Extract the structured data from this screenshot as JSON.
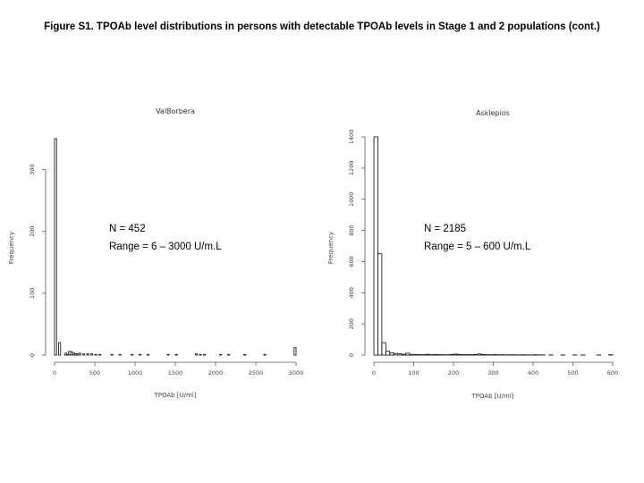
{
  "figure_title": "Figure S1. TPOAb level distributions in persons with detectable TPOAb levels in Stage 1 and 2 populations (cont.)",
  "chart_data": [
    {
      "type": "bar",
      "title": "ValBorbera",
      "xlabel": "TPOAb [U/ml]",
      "ylabel": "Frequency",
      "xticks": [
        0,
        500,
        1000,
        1500,
        2000,
        2500,
        3000
      ],
      "yticks": [
        0,
        100,
        200,
        300
      ],
      "xlim": [
        0,
        3000
      ],
      "ylim": [
        0,
        350
      ],
      "binwidth": 25,
      "bins": [
        {
          "x": 0,
          "y": 350
        },
        {
          "x": 25,
          "y": 0
        },
        {
          "x": 50,
          "y": 20
        },
        {
          "x": 75,
          "y": 0
        },
        {
          "x": 100,
          "y": 0
        },
        {
          "x": 125,
          "y": 3
        },
        {
          "x": 150,
          "y": 1
        },
        {
          "x": 175,
          "y": 6
        },
        {
          "x": 200,
          "y": 5
        },
        {
          "x": 225,
          "y": 3
        },
        {
          "x": 250,
          "y": 2
        },
        {
          "x": 275,
          "y": 2
        },
        {
          "x": 300,
          "y": 3
        },
        {
          "x": 350,
          "y": 2
        },
        {
          "x": 400,
          "y": 2
        },
        {
          "x": 450,
          "y": 2
        },
        {
          "x": 500,
          "y": 1
        },
        {
          "x": 550,
          "y": 1
        },
        {
          "x": 700,
          "y": 1
        },
        {
          "x": 800,
          "y": 1
        },
        {
          "x": 950,
          "y": 1
        },
        {
          "x": 1050,
          "y": 1
        },
        {
          "x": 1150,
          "y": 1
        },
        {
          "x": 1400,
          "y": 1
        },
        {
          "x": 1500,
          "y": 1
        },
        {
          "x": 1750,
          "y": 2
        },
        {
          "x": 1800,
          "y": 1
        },
        {
          "x": 1850,
          "y": 1
        },
        {
          "x": 2050,
          "y": 1
        },
        {
          "x": 2150,
          "y": 1
        },
        {
          "x": 2350,
          "y": 1
        },
        {
          "x": 2600,
          "y": 1
        },
        {
          "x": 2975,
          "y": 12
        }
      ],
      "annotations": [
        "N = 452",
        "Range = 6 – 3000 U/m.L"
      ]
    },
    {
      "type": "bar",
      "title": "Asklepios",
      "xlabel": "TPOAb [U/ml]",
      "ylabel": "Frequency",
      "xticks": [
        0,
        100,
        200,
        300,
        400,
        500,
        600
      ],
      "yticks": [
        0,
        200,
        400,
        600,
        800,
        1000,
        1200,
        1400
      ],
      "xlim": [
        0,
        600
      ],
      "ylim": [
        0,
        1400
      ],
      "binwidth": 10,
      "bins": [
        {
          "x": 0,
          "y": 1400
        },
        {
          "x": 10,
          "y": 650
        },
        {
          "x": 20,
          "y": 80
        },
        {
          "x": 30,
          "y": 25
        },
        {
          "x": 40,
          "y": 15
        },
        {
          "x": 50,
          "y": 10
        },
        {
          "x": 60,
          "y": 8
        },
        {
          "x": 70,
          "y": 5
        },
        {
          "x": 80,
          "y": 12
        },
        {
          "x": 90,
          "y": 4
        },
        {
          "x": 100,
          "y": 4
        },
        {
          "x": 110,
          "y": 3
        },
        {
          "x": 120,
          "y": 3
        },
        {
          "x": 130,
          "y": 5
        },
        {
          "x": 140,
          "y": 3
        },
        {
          "x": 150,
          "y": 4
        },
        {
          "x": 160,
          "y": 3
        },
        {
          "x": 170,
          "y": 2
        },
        {
          "x": 180,
          "y": 2
        },
        {
          "x": 190,
          "y": 4
        },
        {
          "x": 200,
          "y": 6
        },
        {
          "x": 210,
          "y": 4
        },
        {
          "x": 220,
          "y": 3
        },
        {
          "x": 230,
          "y": 3
        },
        {
          "x": 240,
          "y": 3
        },
        {
          "x": 250,
          "y": 3
        },
        {
          "x": 260,
          "y": 7
        },
        {
          "x": 270,
          "y": 4
        },
        {
          "x": 280,
          "y": 3
        },
        {
          "x": 290,
          "y": 2
        },
        {
          "x": 300,
          "y": 3
        },
        {
          "x": 310,
          "y": 2
        },
        {
          "x": 320,
          "y": 2
        },
        {
          "x": 330,
          "y": 1
        },
        {
          "x": 340,
          "y": 2
        },
        {
          "x": 350,
          "y": 2
        },
        {
          "x": 360,
          "y": 1
        },
        {
          "x": 370,
          "y": 2
        },
        {
          "x": 380,
          "y": 1
        },
        {
          "x": 390,
          "y": 1
        },
        {
          "x": 400,
          "y": 2
        },
        {
          "x": 410,
          "y": 1
        },
        {
          "x": 420,
          "y": 1
        },
        {
          "x": 440,
          "y": 1
        },
        {
          "x": 470,
          "y": 1
        },
        {
          "x": 500,
          "y": 1
        },
        {
          "x": 520,
          "y": 1
        },
        {
          "x": 560,
          "y": 1
        },
        {
          "x": 590,
          "y": 2
        }
      ],
      "annotations": [
        "N = 2185",
        "Range = 5 – 600 U/m.L"
      ]
    }
  ]
}
